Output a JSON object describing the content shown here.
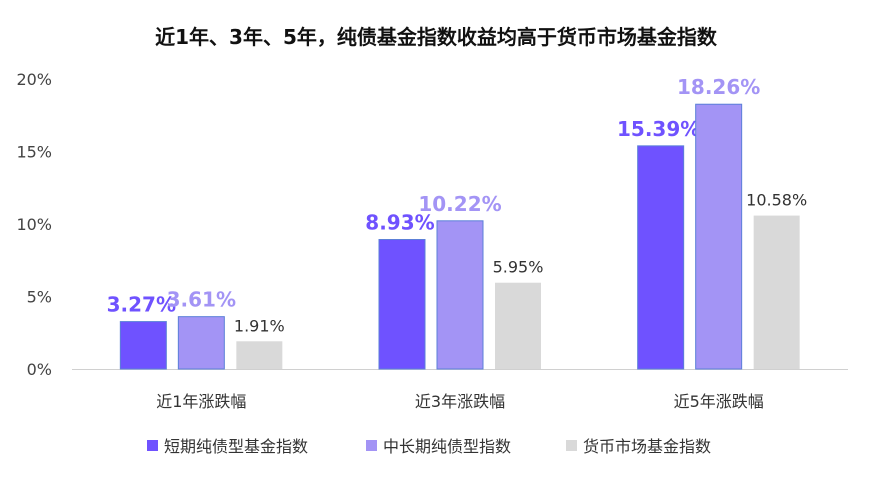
{
  "chart_data": {
    "type": "bar",
    "title": "近1年、3年、5年，纯债基金指数收益均高于货币市场基金指数",
    "xlabel": "",
    "ylabel": "",
    "ylim": [
      0,
      20
    ],
    "yticks": [
      0,
      5,
      10,
      15,
      20
    ],
    "ytick_labels": [
      "0%",
      "5%",
      "10%",
      "15%",
      "20%"
    ],
    "categories": [
      "近1年涨跌幅",
      "近3年涨跌幅",
      "近5年涨跌幅"
    ],
    "series": [
      {
        "name": "短期纯债型基金指数",
        "color": "#6f52ff",
        "label_color": "#6f52ff",
        "values": [
          3.27,
          8.93,
          15.39
        ],
        "data_labels": [
          "3.27%",
          "8.93%",
          "15.39%"
        ]
      },
      {
        "name": "中长期纯债型指数",
        "color": "#a394f5",
        "label_color": "#a394f5",
        "values": [
          3.61,
          10.22,
          18.26
        ],
        "data_labels": [
          "3.61%",
          "10.22%",
          "18.26%"
        ]
      },
      {
        "name": "货币市场基金指数",
        "color": "#d9d9d9",
        "label_color": "#333333",
        "values": [
          1.91,
          5.95,
          10.58
        ],
        "data_labels": [
          "1.91%",
          "5.95%",
          "10.58%"
        ]
      }
    ],
    "grid": false,
    "legend_position": "bottom"
  }
}
